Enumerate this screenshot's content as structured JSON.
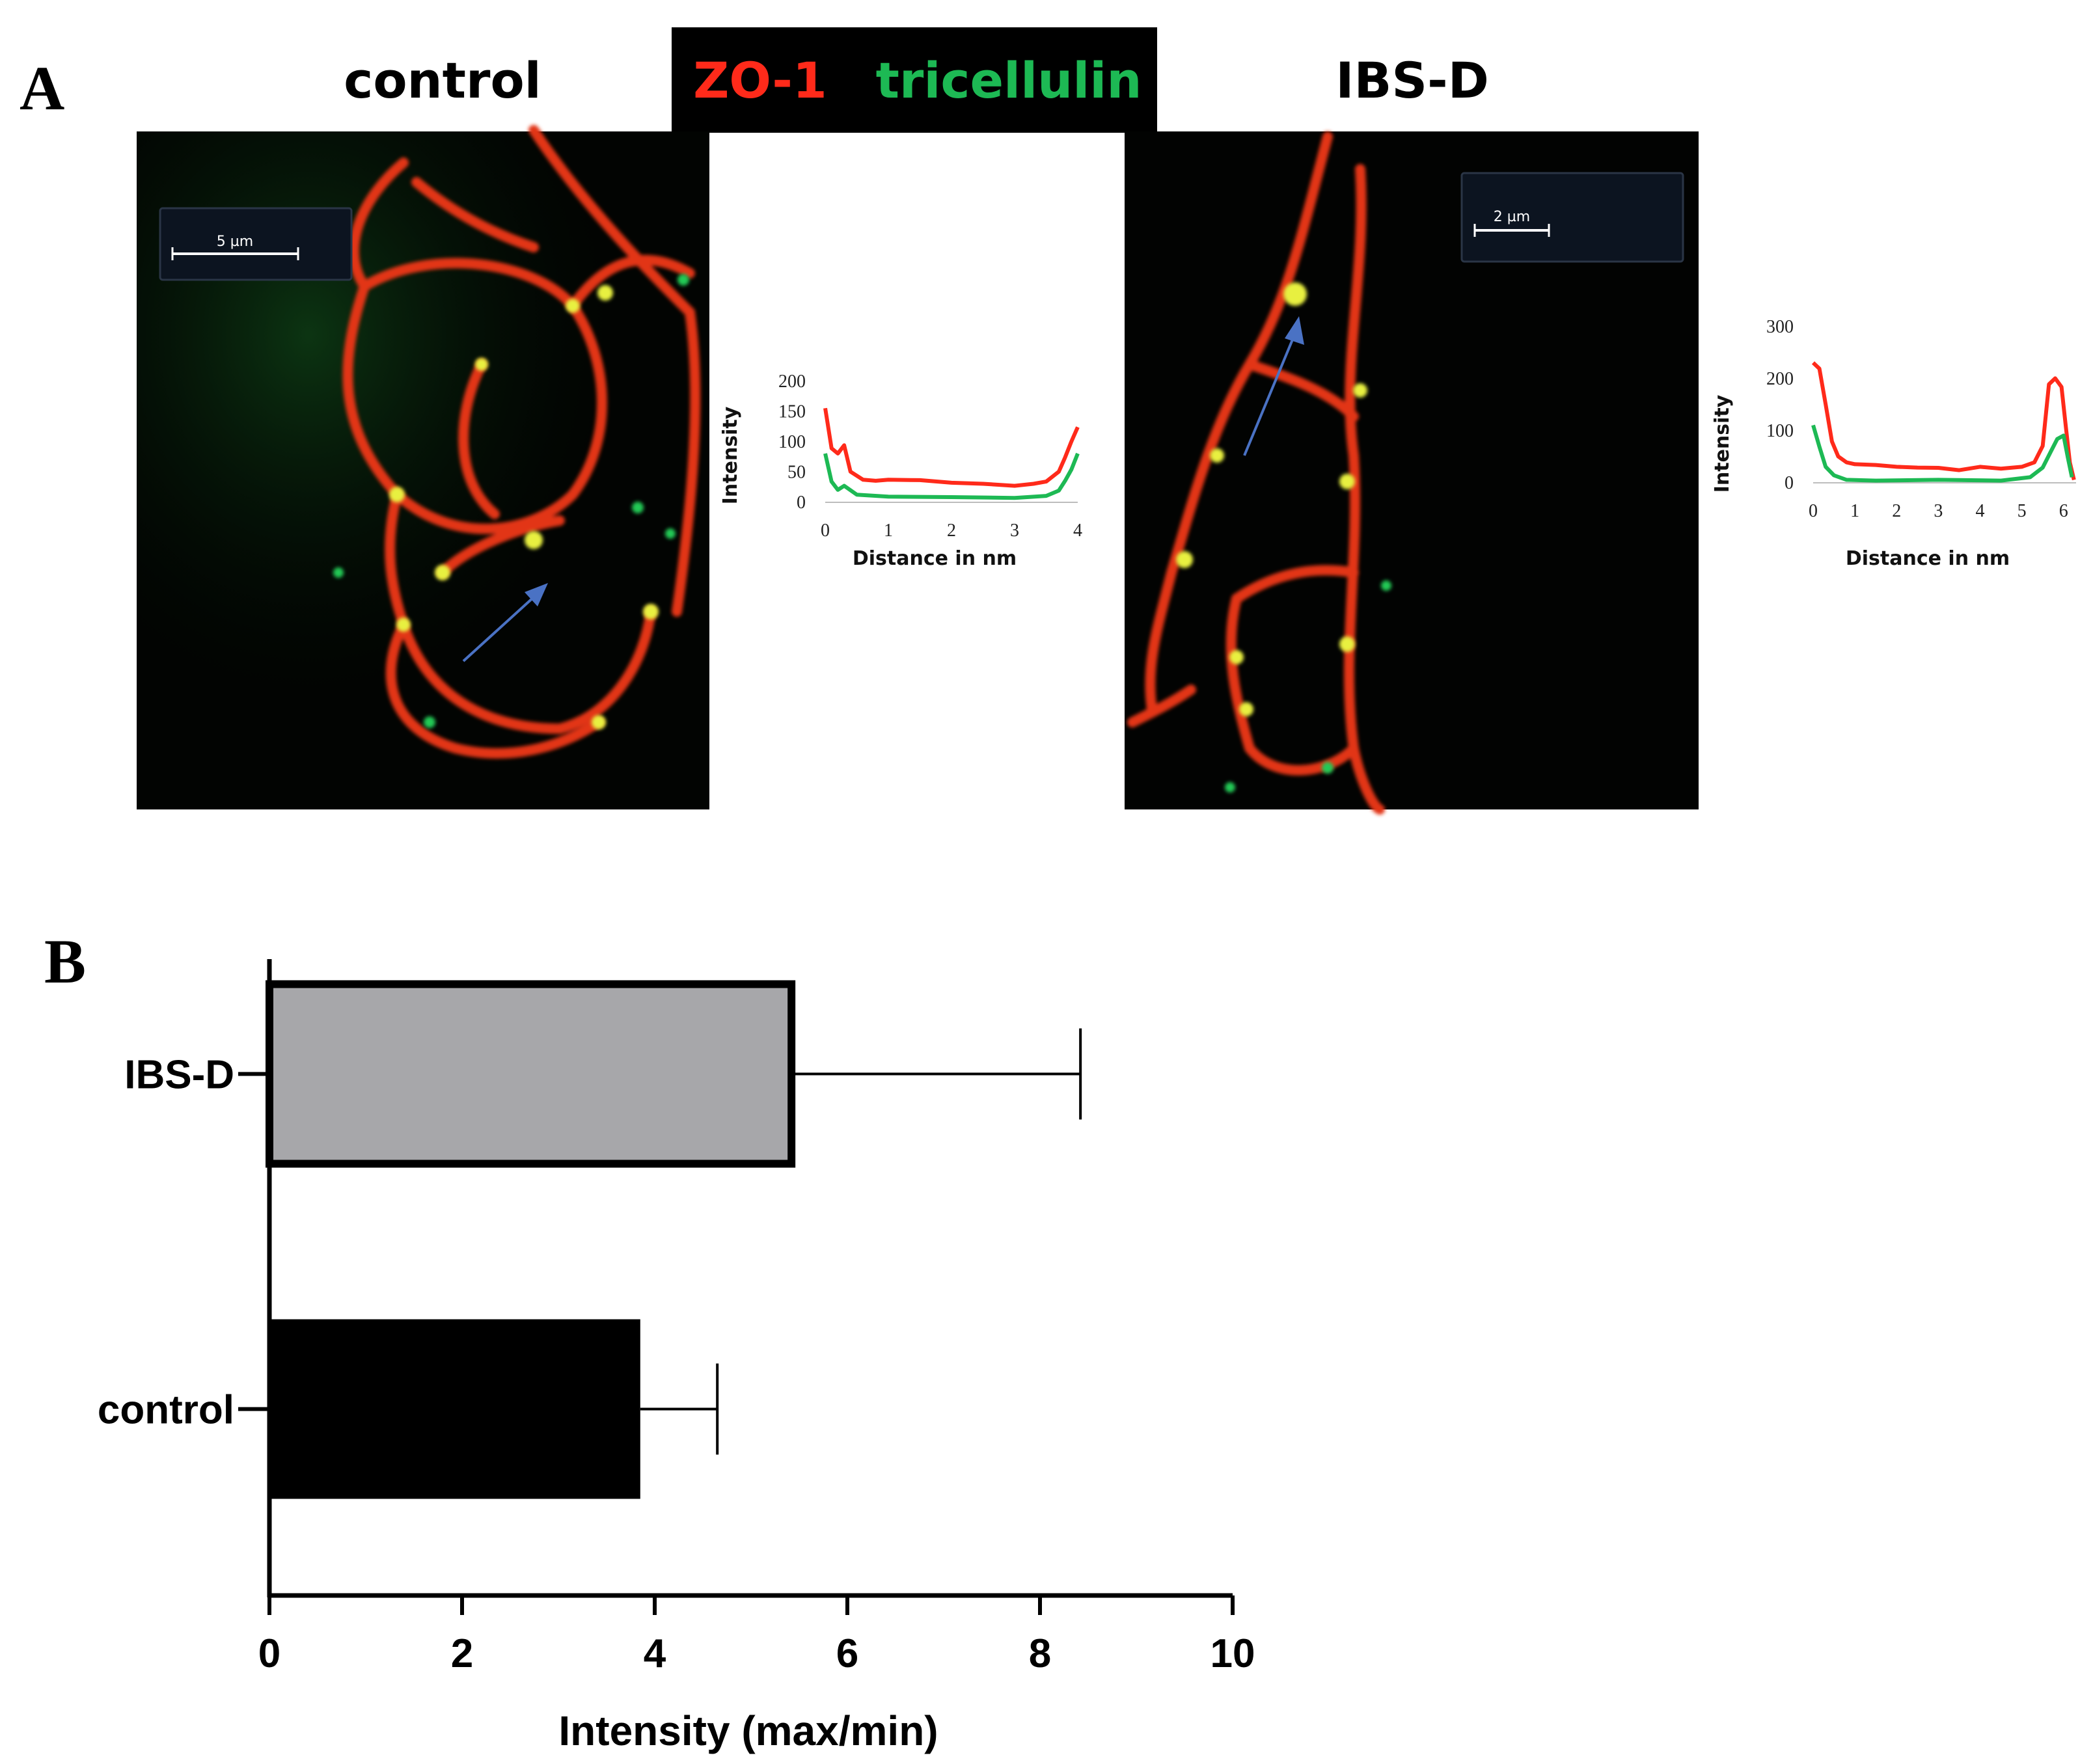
{
  "panel_a": {
    "letter": "A",
    "header_left": "control",
    "header_mid_red": "ZO-1",
    "header_mid_green": "tricellulin",
    "header_right": "IBS-D",
    "scalebar_left": "5 µm",
    "scalebar_right": "2 µm",
    "colors": {
      "red": "#ff2a1a",
      "green": "#1db954",
      "arrow": "#4a72c4"
    }
  },
  "panel_b": {
    "letter": "B"
  },
  "chart_data": [
    {
      "type": "line",
      "id": "profile-control",
      "ylabel": "Intensity",
      "xlabel": "Distance in nm",
      "xlim": [
        0,
        4
      ],
      "ylim": [
        0,
        200
      ],
      "xticks": [
        "0",
        "1",
        "2",
        "3",
        "4"
      ],
      "yticks": [
        "200",
        "150",
        "100",
        "50",
        "0"
      ],
      "series": [
        {
          "color": "#ff2a1a",
          "x": [
            0,
            0.1,
            0.2,
            0.3,
            0.4,
            0.6,
            0.8,
            1.0,
            1.5,
            2.0,
            2.5,
            3.0,
            3.3,
            3.5,
            3.7,
            3.8,
            3.9,
            4.0
          ],
          "y": [
            155,
            90,
            80,
            95,
            50,
            38,
            35,
            38,
            36,
            33,
            30,
            28,
            30,
            35,
            50,
            75,
            100,
            125
          ]
        },
        {
          "color": "#1db954",
          "x": [
            0,
            0.1,
            0.2,
            0.3,
            0.5,
            1.0,
            2.0,
            3.0,
            3.5,
            3.7,
            3.8,
            3.9,
            4.0
          ],
          "y": [
            80,
            35,
            20,
            28,
            12,
            10,
            8,
            8,
            10,
            20,
            35,
            55,
            80
          ]
        }
      ]
    },
    {
      "type": "line",
      "id": "profile-ibsd",
      "ylabel": "Intensity",
      "xlabel": "Distance in nm",
      "xlim": [
        0,
        6.3
      ],
      "ylim": [
        0,
        300
      ],
      "xticks": [
        "0",
        "1",
        "2",
        "3",
        "4",
        "5",
        "6"
      ],
      "yticks": [
        "300",
        "200",
        "100",
        "0"
      ],
      "series": [
        {
          "color": "#ff2a1a",
          "x": [
            0,
            0.15,
            0.3,
            0.45,
            0.6,
            0.8,
            1.0,
            1.5,
            2.0,
            2.5,
            3.0,
            3.5,
            4.0,
            4.5,
            5.0,
            5.3,
            5.5,
            5.65,
            5.8,
            5.95,
            6.05,
            6.15,
            6.25
          ],
          "y": [
            230,
            220,
            150,
            80,
            50,
            40,
            35,
            35,
            30,
            30,
            28,
            25,
            30,
            28,
            30,
            40,
            70,
            190,
            200,
            185,
            110,
            40,
            5
          ]
        },
        {
          "color": "#1db954",
          "x": [
            0,
            0.15,
            0.3,
            0.5,
            0.8,
            1.5,
            3.0,
            4.5,
            5.2,
            5.5,
            5.7,
            5.85,
            6.0,
            6.1,
            6.2
          ],
          "y": [
            110,
            70,
            30,
            15,
            5,
            5,
            5,
            5,
            10,
            30,
            60,
            85,
            90,
            50,
            10
          ]
        }
      ]
    },
    {
      "type": "bar",
      "id": "intensity-bars",
      "orientation": "horizontal",
      "categories": [
        "IBS-D",
        "control"
      ],
      "values": [
        5.42,
        3.85
      ],
      "error": [
        3.0,
        0.8
      ],
      "colors": [
        "#a7a7aa",
        "#000000"
      ],
      "xlabel": "Intensity (max/min)",
      "xlim": [
        0,
        10
      ],
      "xticks": [
        "0",
        "2",
        "4",
        "6",
        "8",
        "10"
      ]
    }
  ]
}
